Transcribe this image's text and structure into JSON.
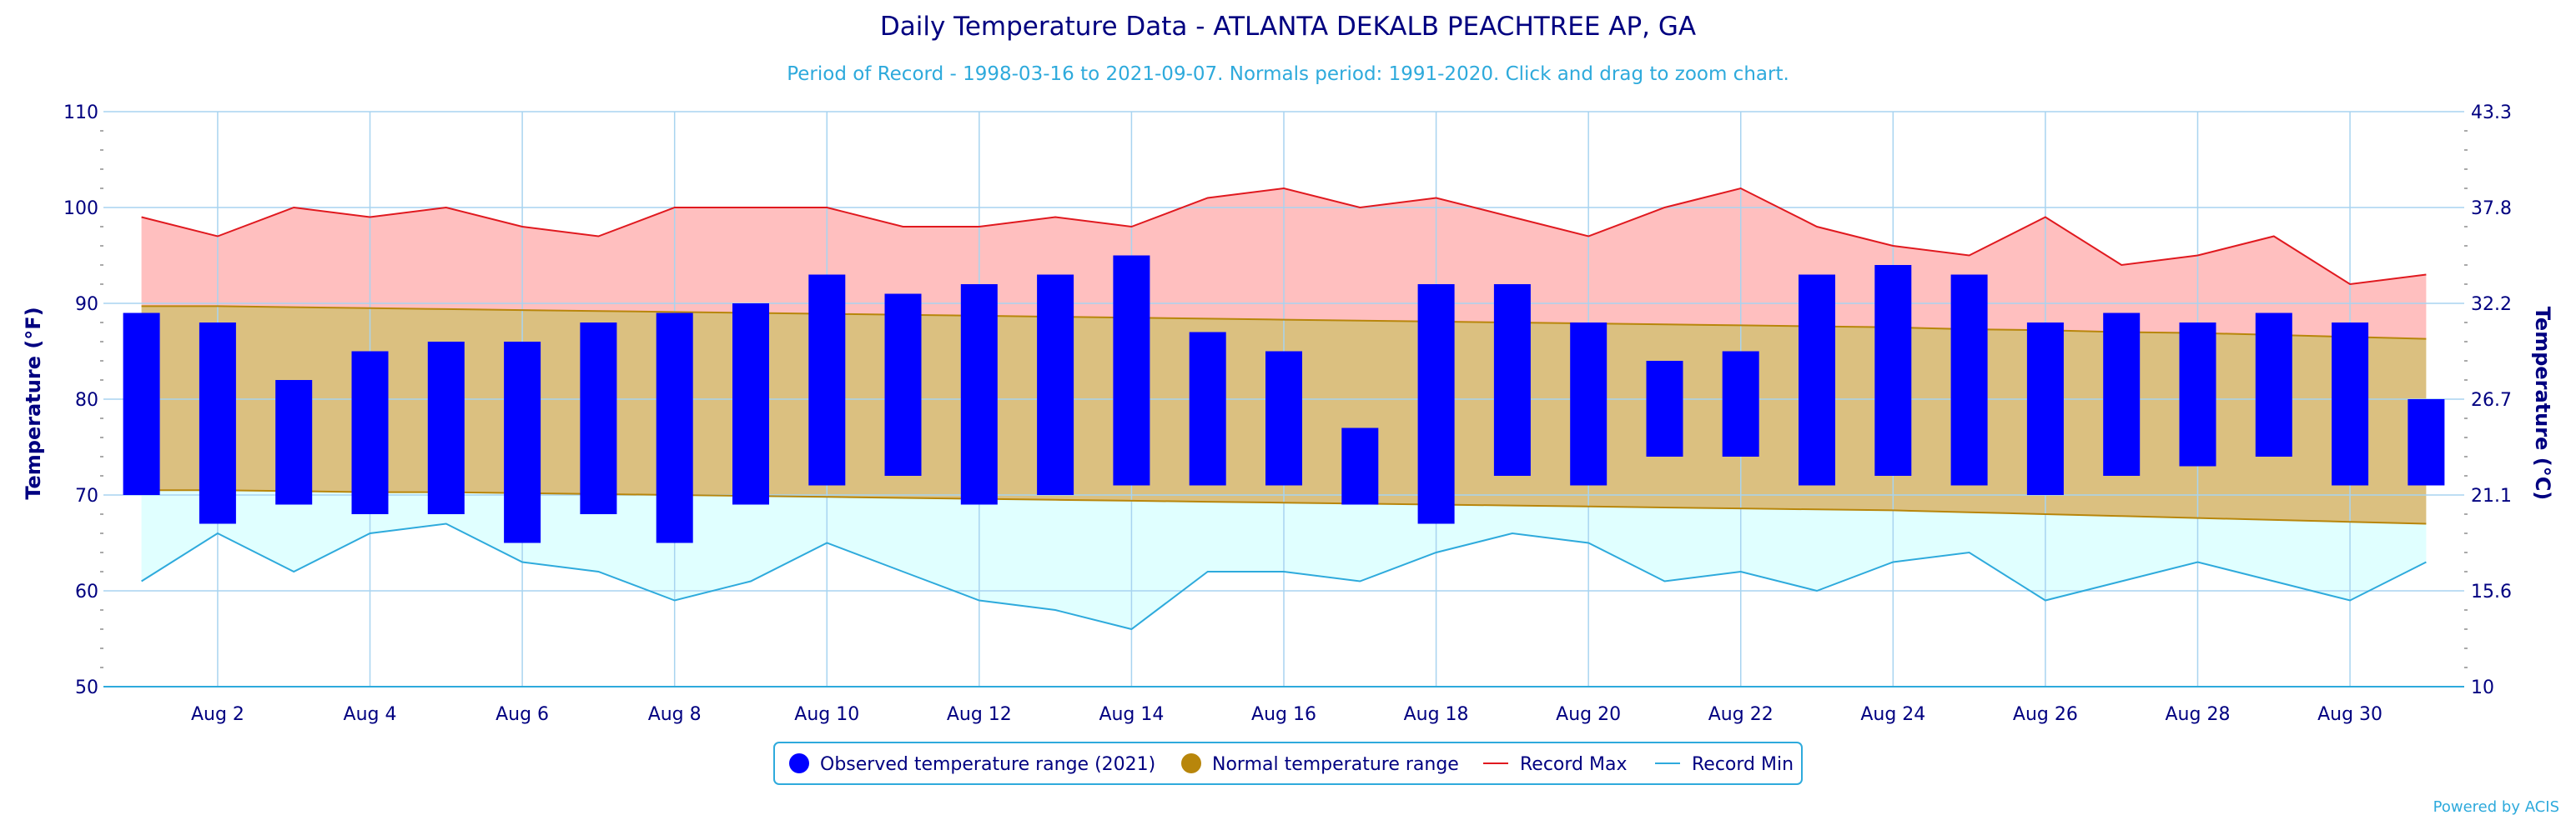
{
  "chart_data": {
    "type": "bar",
    "title": "Daily Temperature Data - ATLANTA DEKALB PEACHTREE AP, GA",
    "subtitle": "Period of Record - 1998-03-16 to 2021-09-07. Normals period: 1991-2020. Click and drag to zoom chart.",
    "ylabel": "Temperature (°F)",
    "ylabel_right": "Temperature (°C)",
    "ylim": [
      50,
      110
    ],
    "yticks": [
      50,
      60,
      70,
      80,
      90,
      100,
      110
    ],
    "yticks_right": [
      "10",
      "15.6",
      "21.1",
      "26.7",
      "32.2",
      "37.8",
      "43.3"
    ],
    "days": [
      1,
      2,
      3,
      4,
      5,
      6,
      7,
      8,
      9,
      10,
      11,
      12,
      13,
      14,
      15,
      16,
      17,
      18,
      19,
      20,
      21,
      22,
      23,
      24,
      25,
      26,
      27,
      28,
      29,
      30,
      31
    ],
    "xtick_labels": [
      "Aug 2",
      "Aug 4",
      "Aug 6",
      "Aug 8",
      "Aug 10",
      "Aug 12",
      "Aug 14",
      "Aug 16",
      "Aug 18",
      "Aug 20",
      "Aug 22",
      "Aug 24",
      "Aug 26",
      "Aug 28",
      "Aug 30"
    ],
    "xtick_days": [
      2,
      4,
      6,
      8,
      10,
      12,
      14,
      16,
      18,
      20,
      22,
      24,
      26,
      28,
      30
    ],
    "grid": true,
    "legend_placement": "bottom-center",
    "series": [
      {
        "name": "Observed temperature range (2021)",
        "type": "range-bar",
        "color": "#0000ff",
        "high": [
          89,
          88,
          82,
          85,
          86,
          86,
          88,
          89,
          90,
          93,
          91,
          92,
          93,
          95,
          87,
          85,
          77,
          92,
          92,
          88,
          84,
          85,
          93,
          94,
          93,
          88,
          89,
          88,
          89,
          88,
          80
        ],
        "low": [
          70,
          67,
          69,
          68,
          68,
          65,
          68,
          65,
          69,
          71,
          72,
          69,
          70,
          71,
          71,
          71,
          69,
          67,
          72,
          71,
          74,
          74,
          71,
          72,
          71,
          70,
          72,
          73,
          74,
          71,
          71
        ]
      },
      {
        "name": "Normal temperature range",
        "type": "range-area",
        "color": "#b8860b",
        "high": [
          89.7,
          89.7,
          89.6,
          89.5,
          89.4,
          89.3,
          89.2,
          89.1,
          89.0,
          88.9,
          88.8,
          88.7,
          88.6,
          88.5,
          88.4,
          88.3,
          88.2,
          88.1,
          88.0,
          87.9,
          87.8,
          87.7,
          87.6,
          87.5,
          87.3,
          87.2,
          87.0,
          86.9,
          86.7,
          86.5,
          86.3
        ],
        "low": [
          70.5,
          70.5,
          70.4,
          70.3,
          70.3,
          70.2,
          70.1,
          70.0,
          69.9,
          69.8,
          69.7,
          69.6,
          69.5,
          69.4,
          69.3,
          69.2,
          69.1,
          69.0,
          68.9,
          68.8,
          68.7,
          68.6,
          68.5,
          68.4,
          68.2,
          68.0,
          67.8,
          67.6,
          67.4,
          67.2,
          67.0
        ]
      },
      {
        "name": "Record Max",
        "type": "line",
        "color": "#e0191f",
        "values": [
          99,
          97,
          100,
          99,
          100,
          98,
          97,
          100,
          100,
          100,
          98,
          98,
          99,
          98,
          101,
          102,
          100,
          101,
          99,
          97,
          100,
          102,
          98,
          96,
          95,
          99,
          94,
          95,
          97,
          92,
          93
        ]
      },
      {
        "name": "Record Min",
        "type": "line",
        "color": "#2eaadc",
        "values": [
          61,
          66,
          62,
          66,
          67,
          63,
          62,
          59,
          61,
          65,
          62,
          59,
          58,
          56,
          62,
          62,
          61,
          64,
          66,
          65,
          61,
          62,
          60,
          63,
          64,
          59,
          61,
          63,
          61,
          59,
          63
        ]
      }
    ],
    "credit": "Powered by ACIS"
  },
  "colors": {
    "record_max_fill": "#ffbfbf",
    "normal_fill": "#dbc080",
    "record_min_fill": "#e0ffff",
    "grid": "#a8d4f0",
    "axis_text": "#000080"
  }
}
